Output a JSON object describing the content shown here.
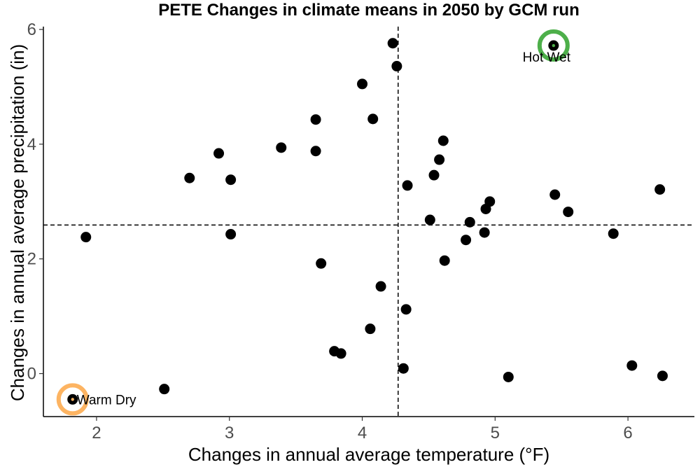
{
  "chart_data": {
    "type": "scatter",
    "title": "PETE Changes in climate means in 2050 by GCM run",
    "xlabel": "Changes in annual average temperature (°F)",
    "ylabel": "Changes in annual average precipitation (in)",
    "xlim": [
      1.6,
      6.5
    ],
    "ylim": [
      -0.75,
      6.05
    ],
    "x_ticks": [
      2,
      3,
      4,
      5,
      6
    ],
    "y_ticks": [
      0,
      2,
      4,
      6
    ],
    "grid": false,
    "reference_lines": {
      "vertical_x": 4.27,
      "horizontal_y": 2.59
    },
    "points": [
      {
        "x": 1.82,
        "y": -0.45
      },
      {
        "x": 1.92,
        "y": 2.38
      },
      {
        "x": 2.51,
        "y": -0.27
      },
      {
        "x": 2.7,
        "y": 3.41
      },
      {
        "x": 2.92,
        "y": 3.84
      },
      {
        "x": 3.01,
        "y": 3.38
      },
      {
        "x": 3.01,
        "y": 2.43
      },
      {
        "x": 3.39,
        "y": 3.94
      },
      {
        "x": 3.65,
        "y": 4.43
      },
      {
        "x": 3.65,
        "y": 3.88
      },
      {
        "x": 3.69,
        "y": 1.92
      },
      {
        "x": 3.79,
        "y": 0.39
      },
      {
        "x": 3.84,
        "y": 0.35
      },
      {
        "x": 4.0,
        "y": 5.05
      },
      {
        "x": 4.06,
        "y": 0.78
      },
      {
        "x": 4.08,
        "y": 4.44
      },
      {
        "x": 4.14,
        "y": 1.52
      },
      {
        "x": 4.23,
        "y": 5.76
      },
      {
        "x": 4.26,
        "y": 5.36
      },
      {
        "x": 4.31,
        "y": 0.09
      },
      {
        "x": 4.33,
        "y": 1.12
      },
      {
        "x": 4.34,
        "y": 3.28
      },
      {
        "x": 4.51,
        "y": 2.68
      },
      {
        "x": 4.54,
        "y": 3.46
      },
      {
        "x": 4.58,
        "y": 3.73
      },
      {
        "x": 4.61,
        "y": 4.06
      },
      {
        "x": 4.62,
        "y": 1.97
      },
      {
        "x": 4.78,
        "y": 2.33
      },
      {
        "x": 4.81,
        "y": 2.64
      },
      {
        "x": 4.92,
        "y": 2.46
      },
      {
        "x": 4.93,
        "y": 2.87
      },
      {
        "x": 4.96,
        "y": 3.0
      },
      {
        "x": 5.1,
        "y": -0.06
      },
      {
        "x": 5.44,
        "y": 5.72
      },
      {
        "x": 5.45,
        "y": 3.12
      },
      {
        "x": 5.55,
        "y": 2.82
      },
      {
        "x": 5.89,
        "y": 2.44
      },
      {
        "x": 6.03,
        "y": 0.14
      },
      {
        "x": 6.24,
        "y": 3.21
      },
      {
        "x": 6.26,
        "y": -0.04
      }
    ],
    "highlights": [
      {
        "label": "Hot Wet",
        "x": 5.44,
        "y": 5.72,
        "color": "#4daf4a"
      },
      {
        "label": "Warm Dry",
        "x": 1.82,
        "y": -0.45,
        "color": "#fdb462"
      }
    ]
  }
}
